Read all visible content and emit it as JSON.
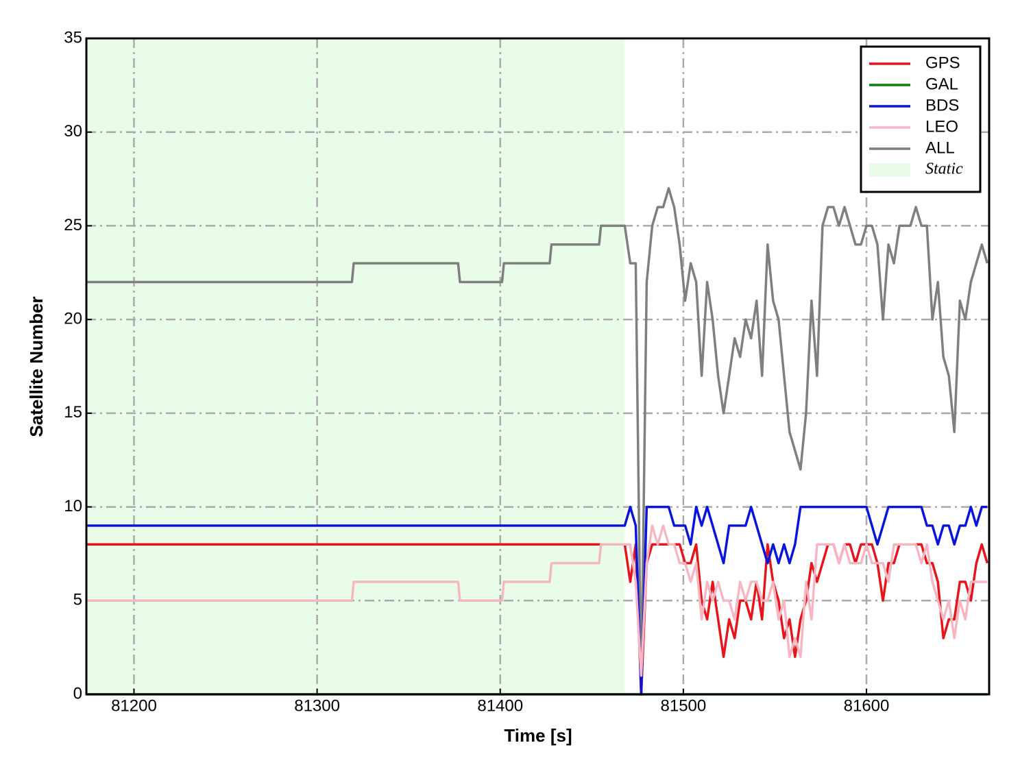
{
  "chart_data": {
    "type": "line",
    "xlabel": "Time [s]",
    "ylabel": "Satellite Number",
    "xlim": [
      81174,
      81667
    ],
    "ylim": [
      0,
      35
    ],
    "xticks": [
      81200,
      81300,
      81400,
      81500,
      81600
    ],
    "yticks": [
      0,
      5,
      10,
      15,
      20,
      25,
      30,
      35
    ],
    "grid": true,
    "legend": "upper right",
    "shaded_region": {
      "label": "Static",
      "xlim": [
        81174,
        81468
      ],
      "color": "#e8fce8"
    },
    "x": [
      81174,
      81319,
      81320,
      81377,
      81378,
      81401,
      81402,
      81427,
      81428,
      81454,
      81455,
      81468,
      81471,
      81474,
      81477,
      81480,
      81483,
      81486,
      81489,
      81492,
      81495,
      81498,
      81501,
      81504,
      81507,
      81510,
      81513,
      81516,
      81519,
      81522,
      81525,
      81528,
      81531,
      81534,
      81537,
      81540,
      81543,
      81546,
      81549,
      81552,
      81555,
      81558,
      81561,
      81564,
      81567,
      81570,
      81573,
      81576,
      81579,
      81582,
      81585,
      81588,
      81591,
      81594,
      81597,
      81600,
      81603,
      81606,
      81609,
      81612,
      81615,
      81618,
      81621,
      81624,
      81627,
      81630,
      81633,
      81636,
      81639,
      81642,
      81645,
      81648,
      81651,
      81654,
      81657,
      81660,
      81663,
      81666
    ],
    "series": [
      {
        "name": "GPS",
        "color": "#e8141c",
        "values": [
          8,
          8,
          8,
          8,
          8,
          8,
          8,
          8,
          8,
          8,
          8,
          8,
          6,
          8,
          0,
          7,
          8,
          8,
          8,
          8,
          8,
          8,
          7,
          7,
          8,
          5,
          4,
          6,
          4,
          2,
          4,
          3,
          5,
          5,
          4,
          6,
          4,
          8,
          6,
          5,
          3,
          4,
          2,
          4,
          5,
          7,
          6,
          7,
          8,
          8,
          7,
          8,
          8,
          7,
          8,
          8,
          8,
          7,
          5,
          7,
          7,
          8,
          8,
          8,
          8,
          8,
          7,
          7,
          6,
          3,
          4,
          4,
          6,
          6,
          5,
          7,
          8,
          7
        ]
      },
      {
        "name": "GAL",
        "color": "#137c13",
        "values": [
          0,
          0,
          0,
          0,
          0,
          0,
          0,
          0,
          0,
          0,
          0,
          0,
          0,
          0,
          0,
          0,
          0,
          0,
          0,
          0,
          0,
          0,
          0,
          0,
          0,
          0,
          0,
          0,
          0,
          0,
          0,
          0,
          0,
          0,
          0,
          0,
          0,
          0,
          0,
          0,
          0,
          0,
          0,
          0,
          0,
          0,
          0,
          0,
          0,
          0,
          0,
          0,
          0,
          0,
          0,
          0,
          0,
          0,
          0,
          0,
          0,
          0,
          0,
          0,
          0,
          0,
          0,
          0,
          0,
          0,
          0,
          0,
          0,
          0,
          0,
          0,
          0,
          0
        ]
      },
      {
        "name": "BDS",
        "color": "#0a14dc",
        "values": [
          9,
          9,
          9,
          9,
          9,
          9,
          9,
          9,
          9,
          9,
          9,
          9,
          10,
          9,
          0,
          10,
          10,
          10,
          10,
          10,
          9,
          9,
          9,
          8,
          10,
          9,
          10,
          9,
          8,
          7,
          9,
          9,
          9,
          9,
          10,
          9,
          8,
          7,
          8,
          7,
          8,
          7,
          8,
          10,
          10,
          10,
          10,
          10,
          10,
          10,
          10,
          10,
          10,
          10,
          10,
          10,
          9,
          8,
          9,
          10,
          10,
          10,
          10,
          10,
          10,
          10,
          9,
          9,
          8,
          9,
          9,
          8,
          9,
          9,
          10,
          9,
          10,
          10
        ]
      },
      {
        "name": "LEO",
        "color": "#f7b7c2",
        "values": [
          5,
          5,
          6,
          6,
          5,
          5,
          6,
          6,
          7,
          7,
          8,
          8,
          8,
          6,
          1,
          7,
          9,
          8,
          9,
          8,
          8,
          7,
          7,
          6,
          7,
          4,
          6,
          5,
          6,
          5,
          5,
          4,
          6,
          5,
          6,
          6,
          5,
          5,
          6,
          4,
          5,
          2,
          3,
          2,
          6,
          4,
          8,
          8,
          8,
          8,
          7,
          8,
          7,
          7,
          7,
          8,
          7,
          7,
          7,
          6,
          8,
          8,
          8,
          8,
          8,
          7,
          8,
          6,
          5,
          4,
          5,
          3,
          5,
          4,
          6,
          6,
          6,
          6
        ]
      },
      {
        "name": "ALL",
        "color": "#7f7f7f",
        "values": [
          22,
          22,
          23,
          23,
          22,
          22,
          23,
          23,
          24,
          24,
          25,
          25,
          23,
          23,
          0,
          22,
          25,
          26,
          26,
          27,
          26,
          24,
          21,
          23,
          22,
          17,
          22,
          20,
          17,
          15,
          17,
          19,
          18,
          20,
          19,
          21,
          17,
          24,
          21,
          20,
          17,
          14,
          13,
          12,
          15,
          21,
          17,
          25,
          26,
          26,
          25,
          26,
          25,
          24,
          24,
          25,
          25,
          24,
          20,
          24,
          23,
          25,
          25,
          25,
          26,
          25,
          25,
          20,
          22,
          18,
          17,
          14,
          21,
          20,
          22,
          23,
          24,
          23
        ]
      }
    ]
  }
}
